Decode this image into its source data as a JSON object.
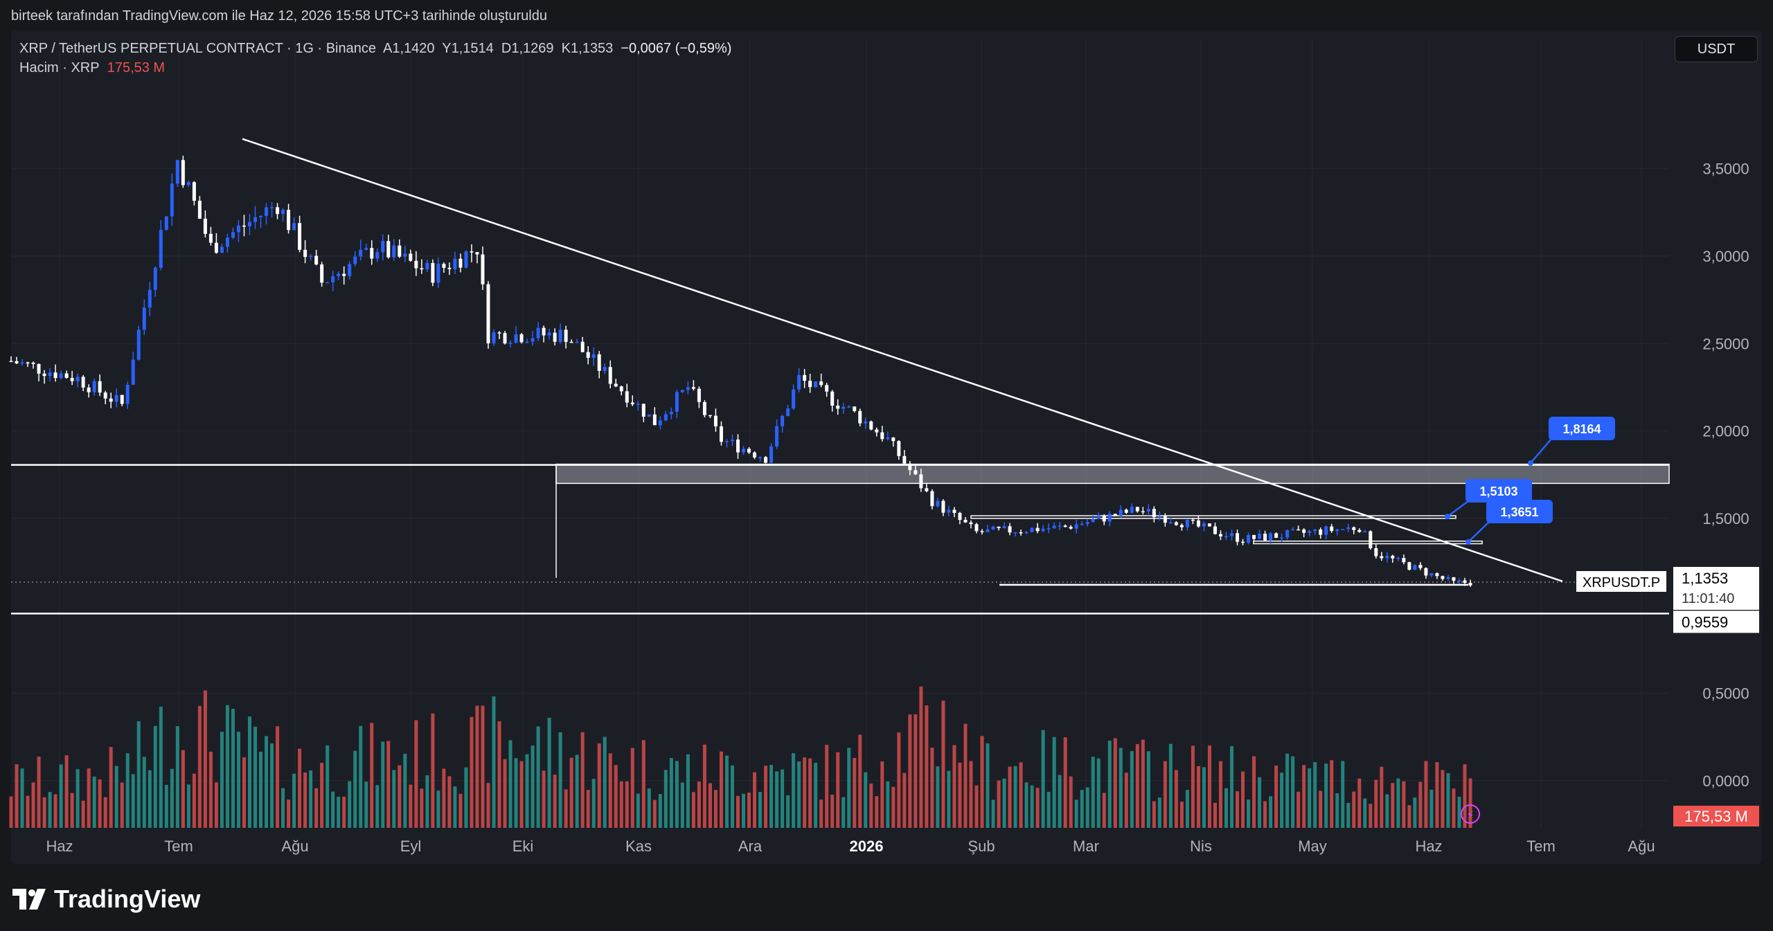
{
  "caption": "birteek tarafından TradingView.com ile Haz 12, 2026 15:58 UTC+3 tarihinde oluşturuldu",
  "legend": {
    "symbol": "XRP / TetherUS PERPETUAL CONTRACT · 1G · Binance",
    "o_label": "A",
    "o": "1,1420",
    "h_label": "Y",
    "h": "1,1514",
    "l_label": "D",
    "l": "1,1269",
    "c_label": "K",
    "c": "1,1353",
    "change": "−0,0067 (−0,59%)",
    "vol_label": "Hacim · XRP",
    "vol_value": "175,53 M"
  },
  "currency": "USDT",
  "brand": "TradingView",
  "colors": {
    "background": "#17181c",
    "panel": "#1c1e26",
    "grid": "#262932",
    "candle_up": "#2962ff",
    "candle_down": "#ffffff",
    "volume_up": "#26a69a",
    "volume_down": "#ef5350",
    "marker": "#2962ff",
    "line": "#ffffff"
  },
  "chart_data": {
    "type": "candlestick",
    "symbol_tag": "XRPUSDT.P",
    "last_price": "1,1353",
    "countdown": "11:01:40",
    "low_label": "0,9559",
    "volume_label": "175,53 M",
    "y_ticks": [
      "3,5000",
      "3,0000",
      "2,5000",
      "2,0000",
      "1,5000",
      "0,5000",
      "0,0000"
    ],
    "y_tick_values": [
      3.5,
      3.0,
      2.5,
      2.0,
      1.5,
      0.5,
      0.0
    ],
    "x_ticks": [
      "Haz",
      "Tem",
      "Ağu",
      "Eyl",
      "Eki",
      "Kas",
      "Ara",
      "2026",
      "Şub",
      "Mar",
      "Nis",
      "May",
      "Haz",
      "Tem",
      "Ağu"
    ],
    "x_tick_bold": "2026",
    "ylim": [
      -0.27,
      3.95
    ],
    "close_path": [
      [
        0,
        2.4
      ],
      [
        12,
        2.3
      ],
      [
        20,
        2.15
      ],
      [
        30,
        3.55
      ],
      [
        36,
        3.05
      ],
      [
        48,
        3.3
      ],
      [
        56,
        2.85
      ],
      [
        66,
        3.05
      ],
      [
        76,
        2.9
      ],
      [
        84,
        3.05
      ],
      [
        86,
        2.55
      ],
      [
        100,
        2.55
      ],
      [
        108,
        2.3
      ],
      [
        116,
        2.05
      ],
      [
        122,
        2.25
      ],
      [
        128,
        1.95
      ],
      [
        136,
        1.85
      ],
      [
        142,
        2.3
      ],
      [
        152,
        2.1
      ],
      [
        158,
        1.95
      ],
      [
        166,
        1.6
      ],
      [
        174,
        1.42
      ],
      [
        190,
        1.45
      ],
      [
        203,
        1.55
      ],
      [
        222,
        1.38
      ],
      [
        243,
        1.45
      ],
      [
        246,
        1.3
      ],
      [
        260,
        1.13
      ],
      [
        263,
        1.135
      ]
    ],
    "volume_path": [
      [
        0,
        180
      ],
      [
        20,
        220
      ],
      [
        30,
        420
      ],
      [
        50,
        250
      ],
      [
        84,
        320
      ],
      [
        86,
        360
      ],
      [
        120,
        230
      ],
      [
        150,
        230
      ],
      [
        168,
        420
      ],
      [
        175,
        250
      ],
      [
        190,
        260
      ],
      [
        220,
        220
      ],
      [
        263,
        175
      ]
    ],
    "volume_unit": "M",
    "horizontal_levels": [
      1.806,
      1.51,
      1.365,
      1.12,
      0.9559
    ],
    "zone": [
      1.7,
      1.81
    ],
    "trendline": [
      [
        37,
        3.67
      ],
      [
        249,
        1.14
      ]
    ],
    "markers": [
      {
        "label": "1,8164",
        "value": 1.8164
      },
      {
        "label": "1,5103",
        "value": 1.5103
      },
      {
        "label": "1,3651",
        "value": 1.3651
      }
    ]
  }
}
